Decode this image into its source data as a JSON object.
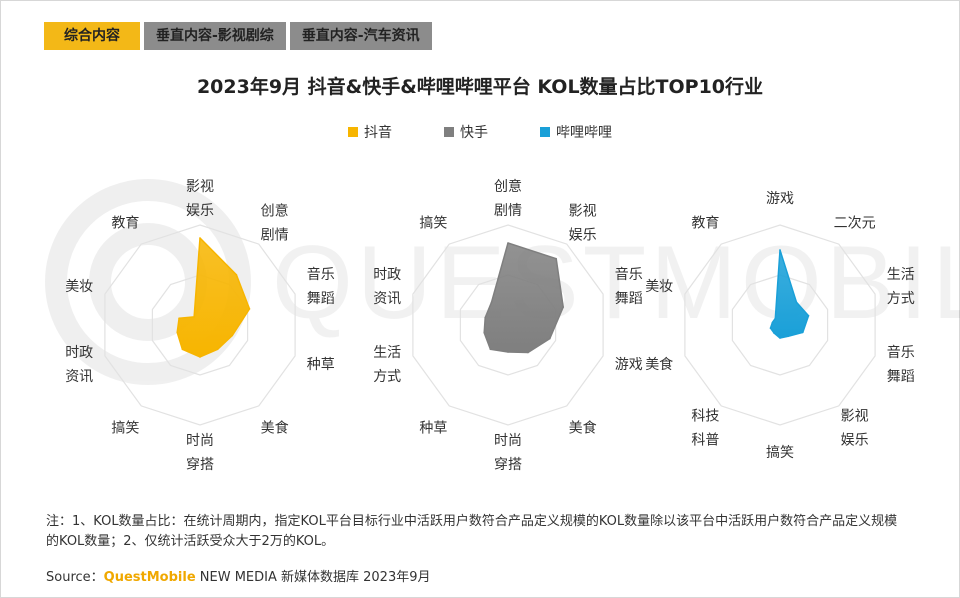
{
  "tabs": [
    {
      "label": "综合内容",
      "active": true
    },
    {
      "label": "垂直内容-影视剧综",
      "active": false
    },
    {
      "label": "垂直内容-汽车资讯",
      "active": false
    }
  ],
  "title": "2023年9月 抖音&快手&哔哩哔哩平台 KOL数量占比TOP10行业",
  "colors": {
    "douyin": "#f7b500",
    "kuaishou": "#7f7f7f",
    "bilibili": "#1aa0d8",
    "accent": "#f3b817"
  },
  "legend": [
    {
      "label": "抖音",
      "color": "#f7b500"
    },
    {
      "label": "快手",
      "color": "#7f7f7f"
    },
    {
      "label": "哔哩哔哩",
      "color": "#1aa0d8"
    }
  ],
  "watermark": "QUESTMOBILE",
  "chart_data": [
    {
      "type": "radar",
      "series": [
        {
          "name": "抖音",
          "color": "#f7b500"
        }
      ],
      "categories": [
        [
          "影视",
          "娱乐"
        ],
        [
          "创意",
          "剧情"
        ],
        [
          "音乐",
          "舞蹈"
        ],
        [
          "种草"
        ],
        [
          "美食"
        ],
        [
          "时尚",
          "穿搭"
        ],
        [
          "搞笑"
        ],
        [
          "时政",
          "资讯"
        ],
        [
          "美妆"
        ],
        [
          "教育"
        ]
      ],
      "values": [
        0.87,
        0.62,
        0.52,
        0.34,
        0.3,
        0.32,
        0.3,
        0.24,
        0.22,
        0.1
      ]
    },
    {
      "type": "radar",
      "series": [
        {
          "name": "快手",
          "color": "#7f7f7f"
        }
      ],
      "categories": [
        [
          "创意",
          "剧情"
        ],
        [
          "影视",
          "娱乐"
        ],
        [
          "音乐",
          "舞蹈"
        ],
        [
          "游戏"
        ],
        [
          "美食"
        ],
        [
          "时尚",
          "穿搭"
        ],
        [
          "种草"
        ],
        [
          "生活",
          "方式"
        ],
        [
          "时政",
          "资讯"
        ],
        [
          "搞笑"
        ]
      ],
      "values": [
        0.82,
        0.82,
        0.58,
        0.44,
        0.34,
        0.27,
        0.3,
        0.25,
        0.24,
        0.28
      ]
    },
    {
      "type": "radar",
      "series": [
        {
          "name": "哔哩哔哩",
          "color": "#1aa0d8"
        }
      ],
      "categories": [
        [
          "游戏"
        ],
        [
          "二次元"
        ],
        [
          "生活",
          "方式"
        ],
        [
          "音乐",
          "舞蹈"
        ],
        [
          "影视",
          "娱乐"
        ],
        [
          "搞笑"
        ],
        [
          "科技",
          "科普"
        ],
        [
          "美食"
        ],
        [
          "美妆"
        ],
        [
          "教育"
        ]
      ],
      "values": [
        0.75,
        0.28,
        0.3,
        0.24,
        0.14,
        0.13,
        0.1,
        0.1,
        0.08,
        0.08
      ]
    }
  ],
  "note": "注：1、KOL数量占比：在统计周期内，指定KOL平台目标行业中活跃用户数符合产品定义规模的KOL数量除以该平台中活跃用户数符合产品定义规模的KOL数量；2、仅统计活跃受众大于2万的KOL。",
  "source": {
    "prefix": "Source：",
    "brand": "QuestMobile",
    "rest": " NEW MEDIA 新媒体数据库 2023年9月"
  }
}
